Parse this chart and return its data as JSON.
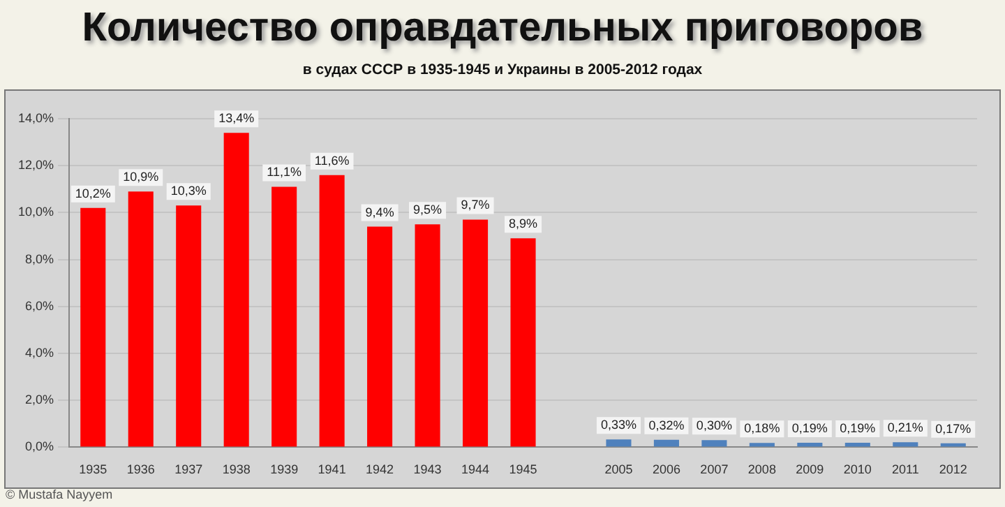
{
  "chart_data": {
    "type": "bar",
    "title": "Количество оправдательных приговоров",
    "subtitle": "в судах СССР в 1935-1945 и Украины в 2005-2012 годах",
    "categories": [
      "1935",
      "1936",
      "1937",
      "1938",
      "1939",
      "1941",
      "1942",
      "1943",
      "1944",
      "1945",
      null,
      "2005",
      "2006",
      "2007",
      "2008",
      "2009",
      "2010",
      "2011",
      "2012"
    ],
    "values": [
      10.2,
      10.9,
      10.3,
      13.4,
      11.1,
      11.6,
      9.4,
      9.5,
      9.7,
      8.9,
      null,
      0.33,
      0.32,
      0.3,
      0.18,
      0.19,
      0.19,
      0.21,
      0.17
    ],
    "value_labels": [
      "10,2%",
      "10,9%",
      "10,3%",
      "13,4%",
      "11,1%",
      "11,6%",
      "9,4%",
      "9,5%",
      "9,7%",
      "8,9%",
      null,
      "0,33%",
      "0,32%",
      "0,30%",
      "0,18%",
      "0,19%",
      "0,19%",
      "0,21%",
      "0,17%"
    ],
    "colors": [
      "#ff0000",
      "#ff0000",
      "#ff0000",
      "#ff0000",
      "#ff0000",
      "#ff0000",
      "#ff0000",
      "#ff0000",
      "#ff0000",
      "#ff0000",
      null,
      "#4f81bd",
      "#4f81bd",
      "#4f81bd",
      "#4f81bd",
      "#4f81bd",
      "#4f81bd",
      "#4f81bd",
      "#4f81bd"
    ],
    "ylim": [
      0,
      14
    ],
    "yticks": [
      {
        "value": 0,
        "label": "0,0%"
      },
      {
        "value": 2,
        "label": "2,0%"
      },
      {
        "value": 4,
        "label": "4,0%"
      },
      {
        "value": 6,
        "label": "6,0%"
      },
      {
        "value": 8,
        "label": "8,0%"
      },
      {
        "value": 10,
        "label": "10,0%"
      },
      {
        "value": 12,
        "label": "12,0%"
      },
      {
        "value": 14,
        "label": "14,0%"
      }
    ],
    "grid": "y",
    "legend": false,
    "annotations": [
      "© Mustafa Nayyem"
    ]
  }
}
